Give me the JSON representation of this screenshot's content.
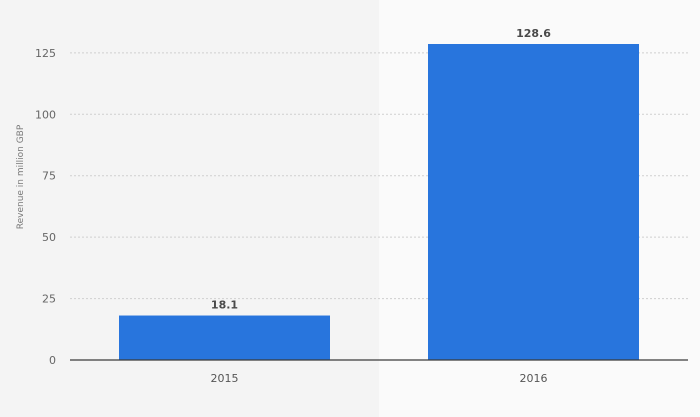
{
  "chart_data": {
    "type": "bar",
    "categories": [
      "2015",
      "2016"
    ],
    "values": [
      18.1,
      128.6
    ],
    "value_labels": [
      "18.1",
      "128.6"
    ],
    "ylabel": "Revenue in million GBP",
    "ylim": [
      0,
      134
    ],
    "yticks": [
      0,
      25,
      50,
      75,
      100,
      125
    ],
    "grid": true,
    "colors": {
      "bar": "#2875dd",
      "grid": "#cfcfcf",
      "axis": "#3a3a3a",
      "band_odd": "#f4f4f4",
      "band_even": "#fafafa"
    }
  }
}
